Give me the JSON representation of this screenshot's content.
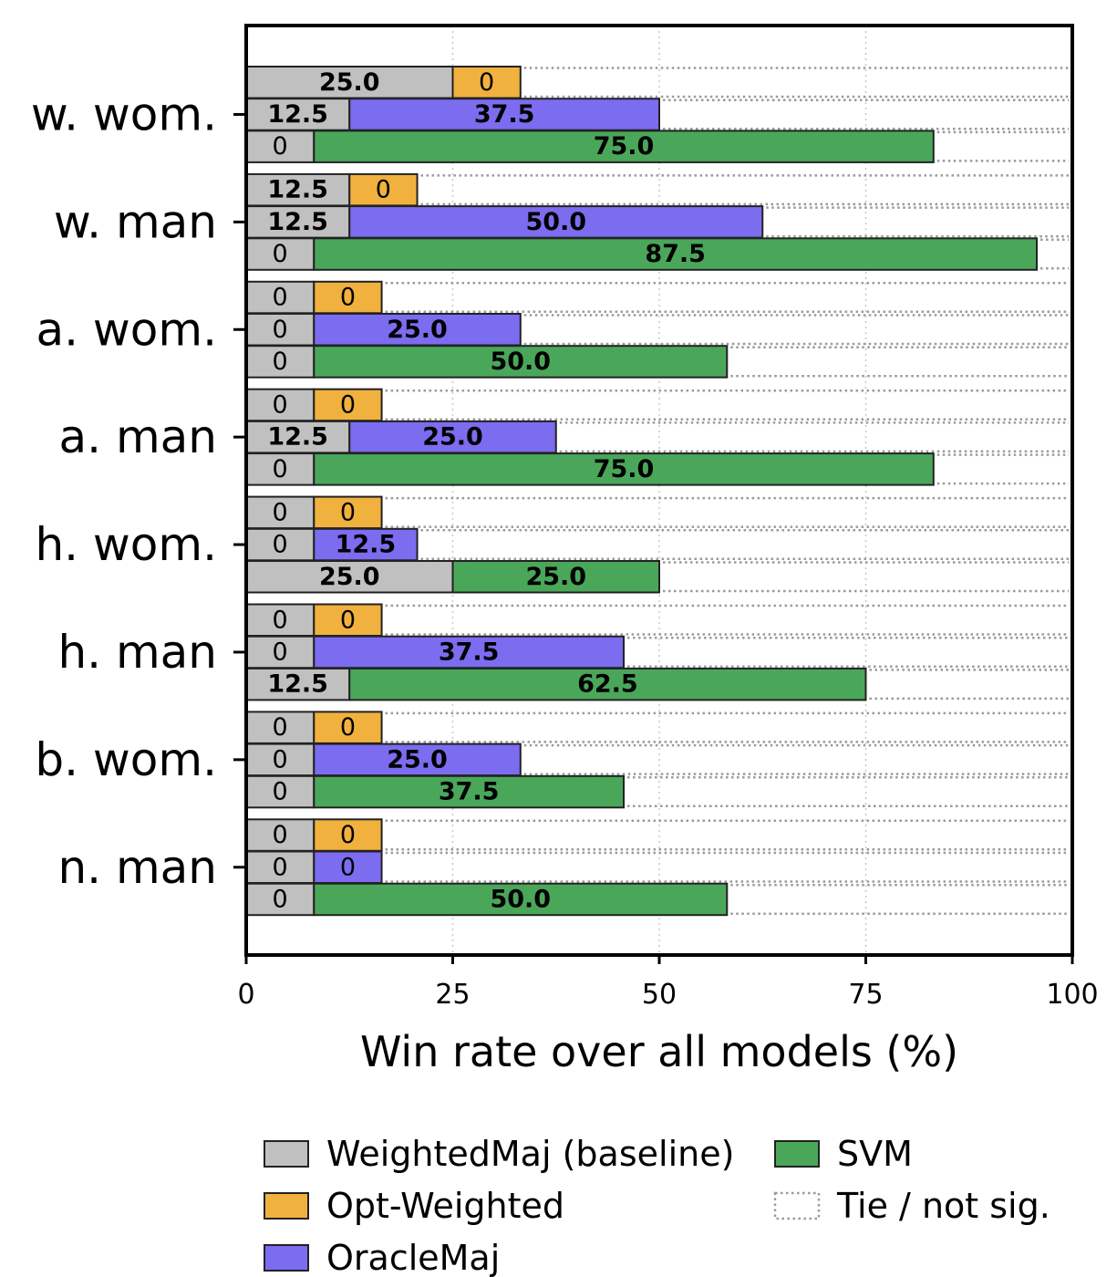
{
  "chart_data": {
    "type": "bar",
    "orientation": "horizontal",
    "stacked_segments": true,
    "xlabel": "Win rate over all models (%)",
    "ylabel": "",
    "xlim": [
      0,
      100
    ],
    "xticks": [
      0,
      25,
      50,
      75,
      100
    ],
    "grid": "vertical dotted",
    "categories": [
      "w. wom.",
      "w. man",
      "a. wom.",
      "a. man",
      "h. wom.",
      "h. man",
      "b. wom.",
      "n. man"
    ],
    "series": [
      {
        "name": "WeightedMaj (baseline)",
        "color": "#c0c0c0"
      },
      {
        "name": "Opt-Weighted",
        "color": "#f1b13e"
      },
      {
        "name": "OracleMaj",
        "color": "#7b6cf0"
      },
      {
        "name": "SVM",
        "color": "#4aa75a"
      }
    ],
    "tie_legend": "Tie / not sig.",
    "rows": [
      {
        "category": "w. wom.",
        "comparison": "Opt-Weighted",
        "baseline_value": 25.0,
        "baseline_label": "25.0",
        "method_value": 0,
        "method_label": "0"
      },
      {
        "category": "w. wom.",
        "comparison": "OracleMaj",
        "baseline_value": 12.5,
        "baseline_label": "12.5",
        "method_value": 37.5,
        "method_label": "37.5"
      },
      {
        "category": "w. wom.",
        "comparison": "SVM",
        "baseline_value": 0,
        "baseline_label": "0",
        "method_value": 75.0,
        "method_label": "75.0"
      },
      {
        "category": "w. man",
        "comparison": "Opt-Weighted",
        "baseline_value": 12.5,
        "baseline_label": "12.5",
        "method_value": 0,
        "method_label": "0"
      },
      {
        "category": "w. man",
        "comparison": "OracleMaj",
        "baseline_value": 12.5,
        "baseline_label": "12.5",
        "method_value": 50.0,
        "method_label": "50.0"
      },
      {
        "category": "w. man",
        "comparison": "SVM",
        "baseline_value": 0,
        "baseline_label": "0",
        "method_value": 87.5,
        "method_label": "87.5"
      },
      {
        "category": "a. wom.",
        "comparison": "Opt-Weighted",
        "baseline_value": 0,
        "baseline_label": "0",
        "method_value": 0,
        "method_label": "0"
      },
      {
        "category": "a. wom.",
        "comparison": "OracleMaj",
        "baseline_value": 0,
        "baseline_label": "0",
        "method_value": 25.0,
        "method_label": "25.0"
      },
      {
        "category": "a. wom.",
        "comparison": "SVM",
        "baseline_value": 0,
        "baseline_label": "0",
        "method_value": 50.0,
        "method_label": "50.0"
      },
      {
        "category": "a. man",
        "comparison": "Opt-Weighted",
        "baseline_value": 0,
        "baseline_label": "0",
        "method_value": 0,
        "method_label": "0"
      },
      {
        "category": "a. man",
        "comparison": "OracleMaj",
        "baseline_value": 12.5,
        "baseline_label": "12.5",
        "method_value": 25.0,
        "method_label": "25.0"
      },
      {
        "category": "a. man",
        "comparison": "SVM",
        "baseline_value": 0,
        "baseline_label": "0",
        "method_value": 75.0,
        "method_label": "75.0"
      },
      {
        "category": "h. wom.",
        "comparison": "Opt-Weighted",
        "baseline_value": 0,
        "baseline_label": "0",
        "method_value": 0,
        "method_label": "0"
      },
      {
        "category": "h. wom.",
        "comparison": "OracleMaj",
        "baseline_value": 0,
        "baseline_label": "0",
        "method_value": 12.5,
        "method_label": "12.5"
      },
      {
        "category": "h. wom.",
        "comparison": "SVM",
        "baseline_value": 25.0,
        "baseline_label": "25.0",
        "method_value": 25.0,
        "method_label": "25.0"
      },
      {
        "category": "h. man",
        "comparison": "Opt-Weighted",
        "baseline_value": 0,
        "baseline_label": "0",
        "method_value": 0,
        "method_label": "0"
      },
      {
        "category": "h. man",
        "comparison": "OracleMaj",
        "baseline_value": 0,
        "baseline_label": "0",
        "method_value": 37.5,
        "method_label": "37.5"
      },
      {
        "category": "h. man",
        "comparison": "SVM",
        "baseline_value": 12.5,
        "baseline_label": "12.5",
        "method_value": 62.5,
        "method_label": "62.5"
      },
      {
        "category": "b. wom.",
        "comparison": "Opt-Weighted",
        "baseline_value": 0,
        "baseline_label": "0",
        "method_value": 0,
        "method_label": "0"
      },
      {
        "category": "b. wom.",
        "comparison": "OracleMaj",
        "baseline_value": 0,
        "baseline_label": "0",
        "method_value": 25.0,
        "method_label": "25.0"
      },
      {
        "category": "b. wom.",
        "comparison": "SVM",
        "baseline_value": 0,
        "baseline_label": "0",
        "method_value": 37.5,
        "method_label": "37.5"
      },
      {
        "category": "n. man",
        "comparison": "Opt-Weighted",
        "baseline_value": 0,
        "baseline_label": "0",
        "method_value": 0,
        "method_label": "0"
      },
      {
        "category": "n. man",
        "comparison": "OracleMaj",
        "baseline_value": 0,
        "baseline_label": "0",
        "method_value": 0,
        "method_label": "0"
      },
      {
        "category": "n. man",
        "comparison": "SVM",
        "baseline_value": 0,
        "baseline_label": "0",
        "method_value": 50.0,
        "method_label": "50.0"
      }
    ],
    "legend": {
      "placement": "bottom",
      "entries": [
        "WeightedMaj (baseline)",
        "Opt-Weighted",
        "OracleMaj",
        "SVM",
        "Tie / not sig."
      ]
    }
  }
}
